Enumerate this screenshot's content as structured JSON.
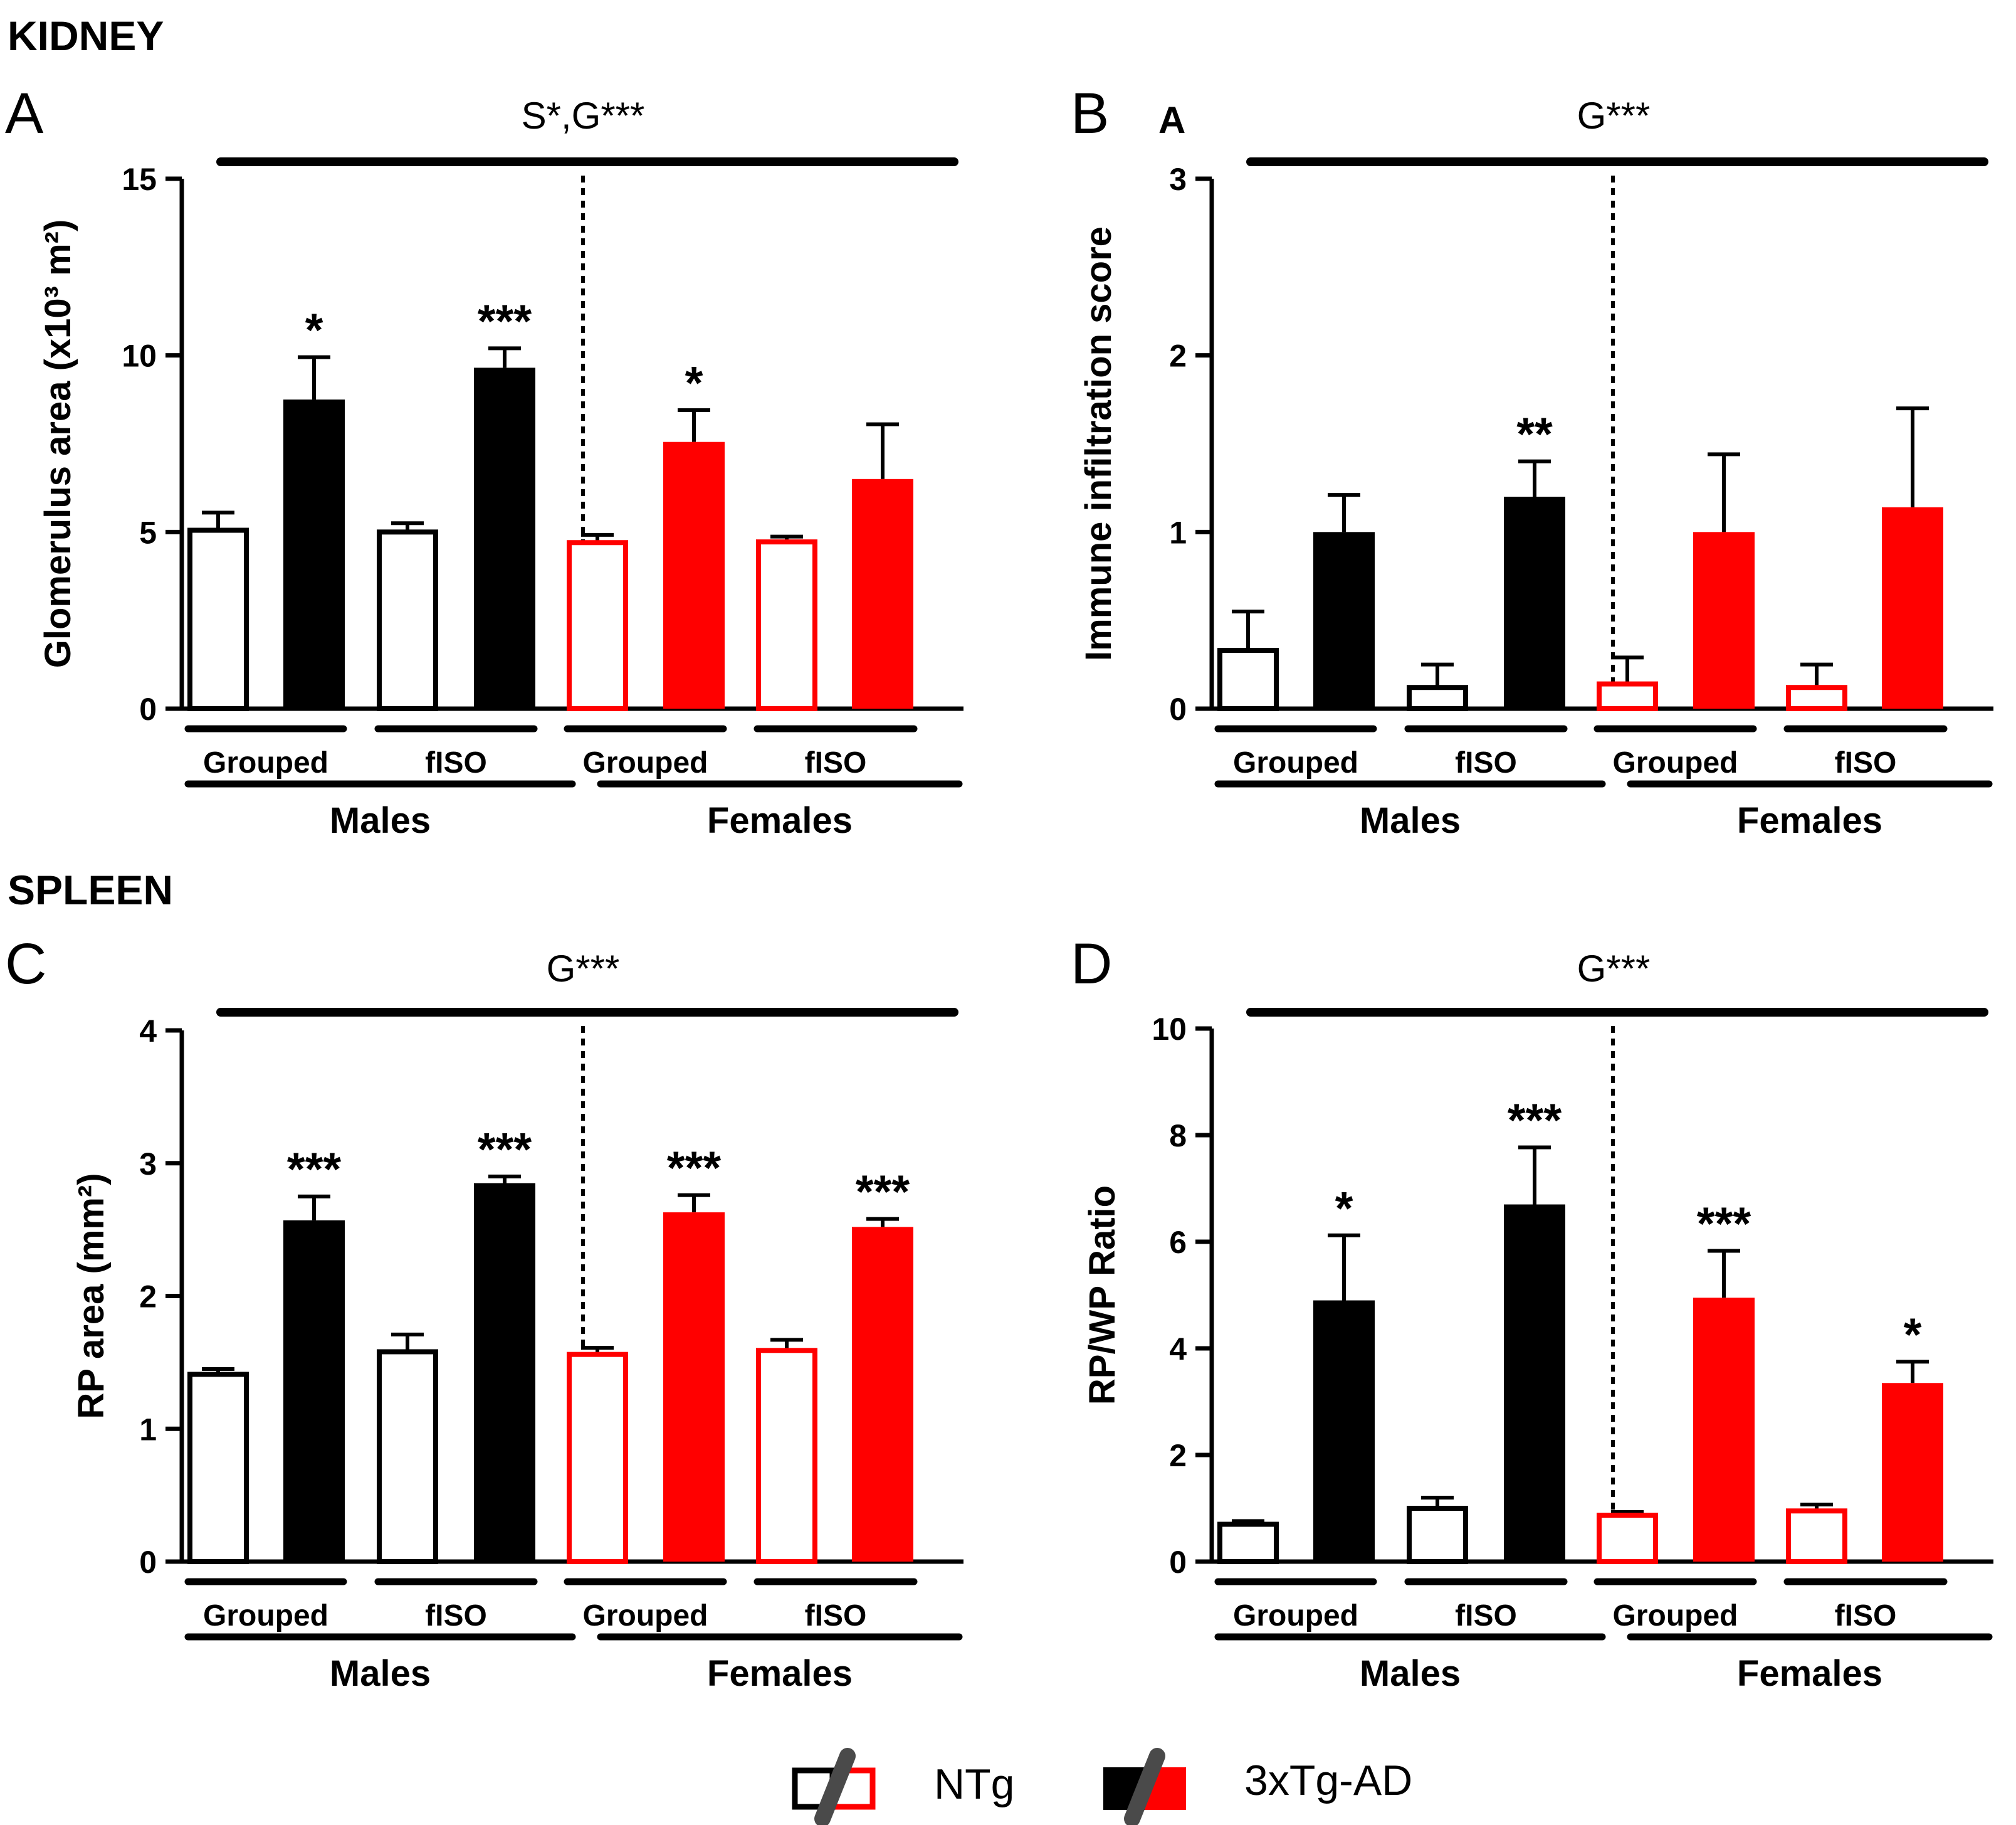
{
  "sections": {
    "kidney": "KIDNEY",
    "spleen": "SPLEEN"
  },
  "colors": {
    "black": "#000000",
    "red": "#ff0000",
    "white": "#ffffff",
    "slash": "#4a4a4a"
  },
  "chart_data": [
    {
      "type": "bar",
      "panel": "A",
      "title": "S*,G***",
      "ylabel": "Glomerulus area (x10³ m²)",
      "ylim": [
        0,
        15
      ],
      "yticks": [
        0,
        5,
        10,
        15
      ],
      "categories": [
        "Males Grouped NTg",
        "Males Grouped 3xTg-AD",
        "Males fISO NTg",
        "Males fISO 3xTg-AD",
        "Females Grouped NTg",
        "Females Grouped 3xTg-AD",
        "Females fISO NTg",
        "Females fISO 3xTg-AD"
      ],
      "values": [
        5.05,
        8.75,
        5.0,
        9.65,
        4.7,
        7.55,
        4.72,
        6.5
      ],
      "errors": [
        0.5,
        1.2,
        0.25,
        0.55,
        0.22,
        0.9,
        0.15,
        1.55
      ],
      "stars": [
        "",
        "*",
        "",
        "***",
        "",
        "*",
        "",
        ""
      ],
      "groups": [
        "Grouped",
        "fISO",
        "Grouped",
        "fISO"
      ],
      "sexes": [
        "Males",
        "Females"
      ]
    },
    {
      "type": "bar",
      "panel": "B",
      "sublabel": "A",
      "title": "G***",
      "ylabel": "Immune infiltration score",
      "ylim": [
        0,
        3
      ],
      "yticks": [
        0,
        1,
        2,
        3
      ],
      "categories": [
        "Males Grouped NTg",
        "Males Grouped 3xTg-AD",
        "Males fISO NTg",
        "Males fISO 3xTg-AD",
        "Females Grouped NTg",
        "Females Grouped 3xTg-AD",
        "Females fISO NTg",
        "Females fISO 3xTg-AD"
      ],
      "values": [
        0.33,
        1.0,
        0.12,
        1.2,
        0.14,
        1.0,
        0.12,
        1.14
      ],
      "errors": [
        0.22,
        0.21,
        0.13,
        0.2,
        0.15,
        0.44,
        0.13,
        0.56
      ],
      "stars": [
        "",
        "",
        "",
        "**",
        "",
        "",
        "",
        ""
      ],
      "groups": [
        "Grouped",
        "fISO",
        "Grouped",
        "fISO"
      ],
      "sexes": [
        "Males",
        "Females"
      ]
    },
    {
      "type": "bar",
      "panel": "C",
      "title": "G***",
      "ylabel": "RP area (mm²)",
      "ylim": [
        0,
        4
      ],
      "yticks": [
        0,
        1,
        2,
        3,
        4
      ],
      "categories": [
        "Males Grouped NTg",
        "Males Grouped 3xTg-AD",
        "Males fISO NTg",
        "Males fISO 3xTg-AD",
        "Females Grouped NTg",
        "Females Grouped 3xTg-AD",
        "Females fISO NTg",
        "Females fISO 3xTg-AD"
      ],
      "values": [
        1.41,
        2.57,
        1.58,
        2.85,
        1.56,
        2.63,
        1.59,
        2.52
      ],
      "errors": [
        0.04,
        0.18,
        0.13,
        0.05,
        0.05,
        0.13,
        0.08,
        0.06
      ],
      "stars": [
        "",
        "***",
        "",
        "***",
        "",
        "***",
        "",
        "***"
      ],
      "groups": [
        "Grouped",
        "fISO",
        "Grouped",
        "fISO"
      ],
      "sexes": [
        "Males",
        "Females"
      ]
    },
    {
      "type": "bar",
      "panel": "D",
      "title": "G***",
      "ylabel": "RP/WP Ratio",
      "ylim": [
        0,
        10
      ],
      "yticks": [
        0,
        2,
        4,
        6,
        8,
        10
      ],
      "categories": [
        "Males Grouped NTg",
        "Males Grouped 3xTg-AD",
        "Males fISO NTg",
        "Males fISO 3xTg-AD",
        "Females Grouped NTg",
        "Females Grouped 3xTg-AD",
        "Females fISO NTg",
        "Females fISO 3xTg-AD"
      ],
      "values": [
        0.7,
        4.9,
        1.0,
        6.7,
        0.87,
        4.95,
        0.95,
        3.35
      ],
      "errors": [
        0.06,
        1.22,
        0.2,
        1.07,
        0.06,
        0.88,
        0.12,
        0.4
      ],
      "stars": [
        "",
        "*",
        "",
        "***",
        "",
        "***",
        "",
        "*"
      ],
      "groups": [
        "Grouped",
        "fISO",
        "Grouped",
        "fISO"
      ],
      "sexes": [
        "Males",
        "Females"
      ]
    }
  ],
  "legend": [
    {
      "label": "NTg",
      "fill": "open"
    },
    {
      "label": "3xTg-AD",
      "fill": "filled"
    }
  ]
}
